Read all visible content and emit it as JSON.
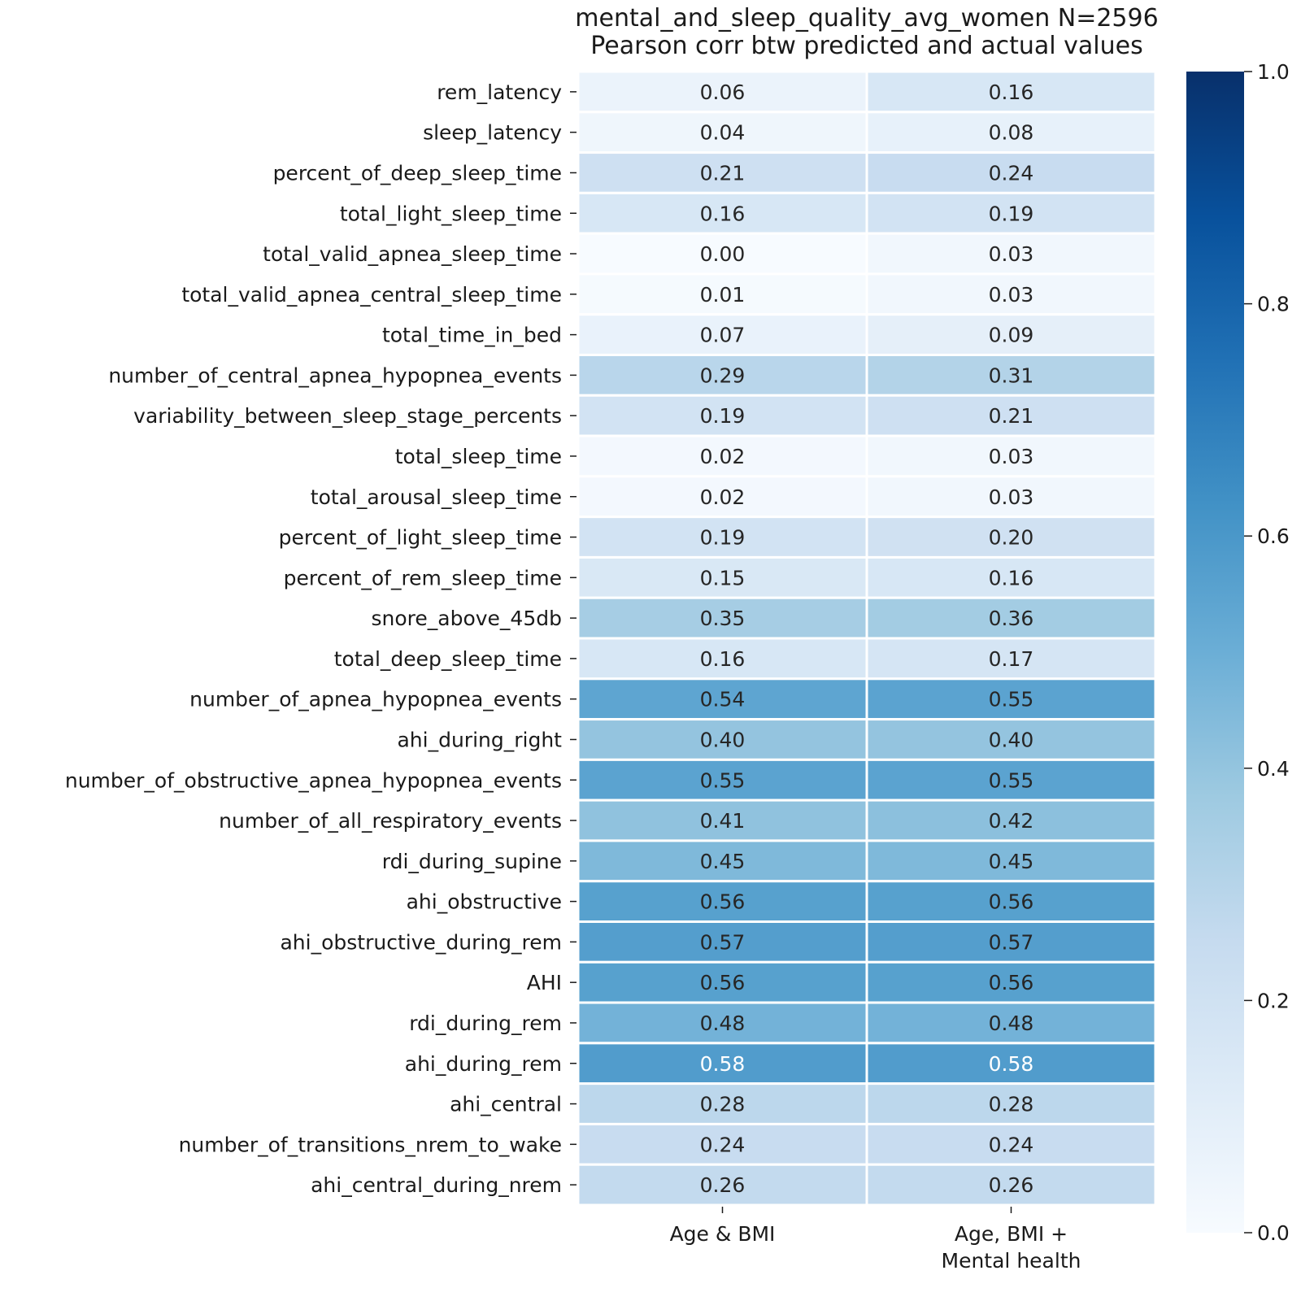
{
  "chart_data": {
    "type": "heatmap",
    "title_lines": [
      "mental_and_sleep_quality_avg_women N=2596",
      "Pearson corr btw predicted and actual values"
    ],
    "xlabel": "",
    "ylabel": "",
    "columns": [
      {
        "lines": [
          "Age & BMI"
        ]
      },
      {
        "lines": [
          "Age, BMI +",
          "Mental health"
        ]
      }
    ],
    "rows": [
      "rem_latency",
      "sleep_latency",
      "percent_of_deep_sleep_time",
      "total_light_sleep_time",
      "total_valid_apnea_sleep_time",
      "total_valid_apnea_central_sleep_time",
      "total_time_in_bed",
      "number_of_central_apnea_hypopnea_events",
      "variability_between_sleep_stage_percents",
      "total_sleep_time",
      "total_arousal_sleep_time",
      "percent_of_light_sleep_time",
      "percent_of_rem_sleep_time",
      "snore_above_45db",
      "total_deep_sleep_time",
      "number_of_apnea_hypopnea_events",
      "ahi_during_right",
      "number_of_obstructive_apnea_hypopnea_events",
      "number_of_all_respiratory_events",
      "rdi_during_supine",
      "ahi_obstructive",
      "ahi_obstructive_during_rem",
      "AHI",
      "rdi_during_rem",
      "ahi_during_rem",
      "ahi_central",
      "number_of_transitions_nrem_to_wake",
      "ahi_central_during_nrem"
    ],
    "values": [
      [
        0.06,
        0.16
      ],
      [
        0.04,
        0.08
      ],
      [
        0.21,
        0.24
      ],
      [
        0.16,
        0.19
      ],
      [
        0.0,
        0.03
      ],
      [
        0.01,
        0.03
      ],
      [
        0.07,
        0.09
      ],
      [
        0.29,
        0.31
      ],
      [
        0.19,
        0.21
      ],
      [
        0.02,
        0.03
      ],
      [
        0.02,
        0.03
      ],
      [
        0.19,
        0.2
      ],
      [
        0.15,
        0.16
      ],
      [
        0.35,
        0.36
      ],
      [
        0.16,
        0.17
      ],
      [
        0.54,
        0.55
      ],
      [
        0.4,
        0.4
      ],
      [
        0.55,
        0.55
      ],
      [
        0.41,
        0.42
      ],
      [
        0.45,
        0.45
      ],
      [
        0.56,
        0.56
      ],
      [
        0.57,
        0.57
      ],
      [
        0.56,
        0.56
      ],
      [
        0.48,
        0.48
      ],
      [
        0.58,
        0.58
      ],
      [
        0.28,
        0.28
      ],
      [
        0.24,
        0.24
      ],
      [
        0.26,
        0.26
      ]
    ],
    "value_format_decimals": 2,
    "colormap": "Blues",
    "colormap_stops": [
      "#f7fbff",
      "#deebf7",
      "#c6dbef",
      "#9ecae1",
      "#6baed6",
      "#4292c6",
      "#2171b5",
      "#08519c",
      "#08306b"
    ],
    "vmin": 0.0,
    "vmax": 1.0,
    "colorbar_ticks": [
      "0.0",
      "0.2",
      "0.4",
      "0.6",
      "0.8",
      "1.0"
    ],
    "annotation_colors": {
      "dark": "#262626",
      "light": "#ffffff"
    },
    "cell_gridline_color": "#ffffff"
  }
}
